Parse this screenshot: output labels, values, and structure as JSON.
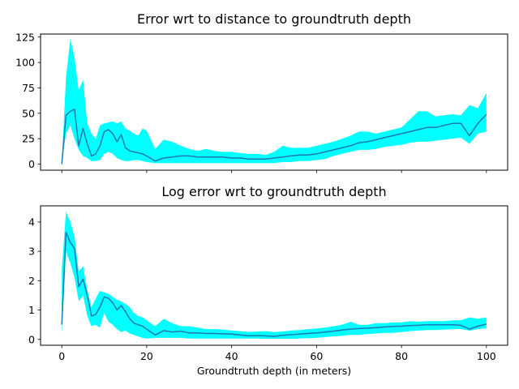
{
  "chart_data": [
    {
      "type": "line",
      "title": "Error wrt to distance to groundtruth depth",
      "xlabel": "",
      "ylabel": "",
      "xlim": [
        -5,
        105
      ],
      "ylim": [
        -6,
        128
      ],
      "x_ticks": [
        0,
        20,
        40,
        60,
        80,
        100
      ],
      "x_tick_labels_visible": false,
      "y_ticks": [
        0,
        25,
        50,
        75,
        100,
        125
      ],
      "y_tick_labels": [
        "0",
        "25",
        "50",
        "75",
        "100",
        "125"
      ],
      "band_color": "#00ffff",
      "line_color": "#1f77b4",
      "band_x": [
        0,
        1,
        2,
        3,
        4,
        5,
        6,
        7,
        8,
        9,
        10,
        11,
        12,
        13,
        14,
        15,
        16,
        17,
        18,
        19,
        20,
        22,
        24,
        26,
        28,
        30,
        32,
        34,
        36,
        38,
        40,
        42,
        44,
        46,
        48,
        50,
        52,
        54,
        56,
        58,
        60,
        62,
        64,
        66,
        68,
        70,
        72,
        74,
        76,
        78,
        80,
        82,
        84,
        86,
        88,
        90,
        92,
        94,
        96,
        98,
        100
      ],
      "band_upper": [
        2,
        85,
        123,
        105,
        72,
        83,
        40,
        30,
        25,
        38,
        40,
        41,
        42,
        40,
        42,
        35,
        33,
        30,
        28,
        35,
        33,
        15,
        24,
        22,
        18,
        15,
        13,
        15,
        13,
        12,
        12,
        11,
        10,
        10,
        9,
        12,
        18,
        16,
        16,
        16,
        18,
        20,
        22,
        25,
        28,
        32,
        32,
        30,
        32,
        34,
        36,
        44,
        52,
        52,
        47,
        48,
        49,
        48,
        58,
        55,
        70
      ],
      "band_lower": [
        0,
        30,
        38,
        25,
        14,
        8,
        6,
        3,
        3,
        4,
        10,
        12,
        10,
        6,
        4,
        3,
        3,
        4,
        4,
        3,
        2,
        1,
        1,
        1,
        1,
        1,
        1,
        1,
        1,
        1,
        1,
        1,
        1,
        1,
        1,
        1,
        2,
        2,
        3,
        3,
        4,
        5,
        8,
        10,
        12,
        14,
        14,
        15,
        17,
        18,
        19,
        21,
        22,
        22,
        23,
        24,
        25,
        26,
        20,
        30,
        32
      ],
      "series": [
        {
          "x": [
            0,
            1,
            2,
            3,
            4,
            5,
            6,
            7,
            8,
            9,
            10,
            11,
            12,
            13,
            14,
            15,
            16,
            17,
            18,
            19,
            20,
            22,
            24,
            26,
            28,
            30,
            32,
            34,
            36,
            38,
            40,
            42,
            44,
            46,
            48,
            50,
            52,
            54,
            56,
            58,
            60,
            62,
            64,
            66,
            68,
            70,
            72,
            74,
            76,
            78,
            80,
            82,
            84,
            86,
            88,
            90,
            92,
            94,
            96,
            98,
            100
          ],
          "values": [
            0,
            48,
            52,
            54,
            18,
            35,
            20,
            8,
            10,
            18,
            32,
            34,
            30,
            22,
            29,
            16,
            13,
            12,
            11,
            10,
            8,
            3,
            6,
            7,
            8,
            8,
            7,
            7,
            7,
            7,
            6,
            6,
            5,
            5,
            5,
            6,
            7,
            8,
            9,
            9,
            10,
            12,
            14,
            16,
            18,
            21,
            22,
            24,
            26,
            28,
            30,
            32,
            34,
            36,
            36,
            38,
            40,
            40,
            28,
            40,
            49
          ]
        }
      ]
    },
    {
      "type": "line",
      "title": "Log error wrt to groundtruth depth",
      "xlabel": "Groundtruth depth (in meters)",
      "ylabel": "",
      "xlim": [
        -5,
        105
      ],
      "ylim": [
        -0.2,
        4.55
      ],
      "x_ticks": [
        0,
        20,
        40,
        60,
        80,
        100
      ],
      "x_tick_labels": [
        "0",
        "20",
        "40",
        "60",
        "80",
        "100"
      ],
      "y_ticks": [
        0,
        1,
        2,
        3,
        4
      ],
      "y_tick_labels": [
        "0",
        "1",
        "2",
        "3",
        "4"
      ],
      "band_color": "#00ffff",
      "line_color": "#1f77b4",
      "band_x": [
        0,
        1,
        2,
        3,
        4,
        5,
        6,
        7,
        8,
        9,
        10,
        11,
        12,
        13,
        14,
        15,
        16,
        17,
        18,
        19,
        20,
        22,
        24,
        26,
        28,
        30,
        32,
        34,
        36,
        38,
        40,
        42,
        44,
        46,
        48,
        50,
        52,
        54,
        56,
        58,
        60,
        62,
        64,
        66,
        68,
        70,
        72,
        74,
        76,
        78,
        80,
        82,
        84,
        86,
        88,
        90,
        92,
        94,
        96,
        98,
        100
      ],
      "band_upper": [
        2.4,
        4.35,
        4.0,
        3.5,
        2.3,
        2.5,
        1.7,
        1.1,
        1.4,
        1.65,
        1.6,
        1.55,
        1.45,
        1.35,
        1.3,
        1.2,
        1.1,
        0.9,
        0.8,
        0.75,
        0.65,
        0.45,
        0.7,
        0.55,
        0.45,
        0.45,
        0.4,
        0.35,
        0.35,
        0.33,
        0.3,
        0.28,
        0.25,
        0.27,
        0.28,
        0.25,
        0.27,
        0.3,
        0.32,
        0.35,
        0.37,
        0.4,
        0.45,
        0.5,
        0.6,
        0.5,
        0.5,
        0.55,
        0.55,
        0.58,
        0.58,
        0.62,
        0.6,
        0.62,
        0.62,
        0.62,
        0.65,
        0.65,
        0.75,
        0.7,
        0.75
      ],
      "band_lower": [
        0.2,
        3.0,
        2.6,
        2.1,
        1.3,
        1.5,
        0.8,
        0.45,
        0.5,
        0.4,
        0.9,
        0.6,
        0.5,
        0.35,
        0.25,
        0.3,
        0.2,
        0.15,
        0.1,
        0.05,
        0.03,
        0.05,
        0.05,
        0.05,
        0.05,
        0.03,
        0.03,
        0.03,
        0.03,
        0.03,
        0.03,
        0.03,
        0.03,
        0.03,
        0.02,
        0.02,
        0.02,
        0.02,
        0.03,
        0.04,
        0.05,
        0.08,
        0.1,
        0.12,
        0.15,
        0.15,
        0.18,
        0.2,
        0.22,
        0.22,
        0.25,
        0.28,
        0.3,
        0.32,
        0.32,
        0.33,
        0.35,
        0.35,
        0.3,
        0.35,
        0.38
      ],
      "series": [
        {
          "x": [
            0,
            1,
            2,
            3,
            4,
            5,
            6,
            7,
            8,
            9,
            10,
            11,
            12,
            13,
            14,
            15,
            16,
            17,
            18,
            19,
            20,
            22,
            24,
            26,
            28,
            30,
            32,
            34,
            36,
            38,
            40,
            42,
            44,
            46,
            48,
            50,
            52,
            54,
            56,
            58,
            60,
            62,
            64,
            66,
            68,
            70,
            72,
            74,
            76,
            78,
            80,
            82,
            84,
            86,
            88,
            90,
            92,
            94,
            96,
            98,
            100
          ],
          "values": [
            0.5,
            3.65,
            3.3,
            3.1,
            1.8,
            2.05,
            1.5,
            0.8,
            0.85,
            1.1,
            1.45,
            1.4,
            1.25,
            1.0,
            1.15,
            0.95,
            0.7,
            0.55,
            0.5,
            0.45,
            0.35,
            0.15,
            0.3,
            0.25,
            0.28,
            0.22,
            0.22,
            0.2,
            0.2,
            0.19,
            0.18,
            0.15,
            0.12,
            0.13,
            0.12,
            0.1,
            0.14,
            0.16,
            0.18,
            0.2,
            0.22,
            0.25,
            0.28,
            0.32,
            0.35,
            0.37,
            0.38,
            0.4,
            0.42,
            0.44,
            0.45,
            0.47,
            0.48,
            0.5,
            0.5,
            0.5,
            0.5,
            0.48,
            0.35,
            0.45,
            0.52
          ]
        }
      ]
    }
  ]
}
